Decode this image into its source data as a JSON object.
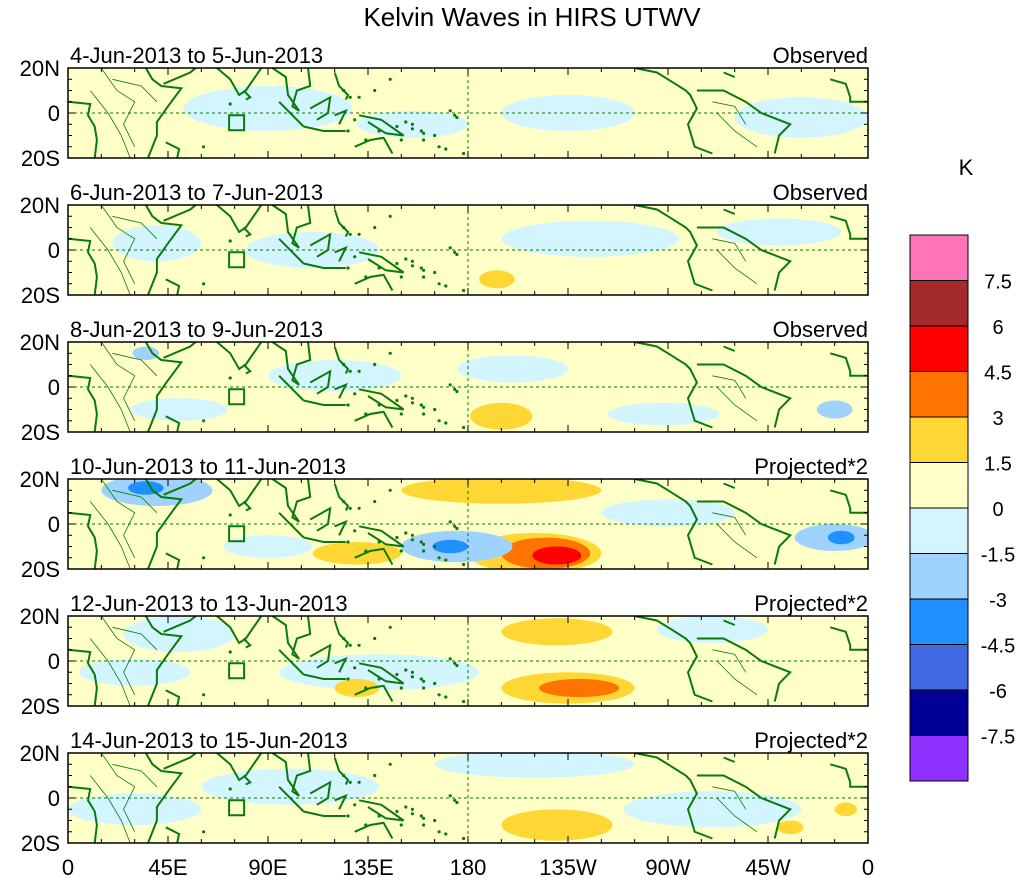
{
  "title": "Kelvin Waves in HIRS UTWV",
  "x_axis": {
    "tick_labels": [
      "0",
      "45E",
      "90E",
      "135E",
      "180",
      "135W",
      "90W",
      "45W",
      "0"
    ],
    "lon_values": [
      0,
      45,
      90,
      135,
      180,
      225,
      270,
      315,
      360
    ]
  },
  "y_axis": {
    "tick_labels": [
      "20N",
      "0",
      "20S"
    ],
    "lat_values": [
      20,
      0,
      -20
    ]
  },
  "colorbar": {
    "unit": "K",
    "tick_labels": [
      "7.5",
      "6",
      "4.5",
      "3",
      "1.5",
      "0",
      "-1.5",
      "-3",
      "-4.5",
      "-6",
      "-7.5"
    ],
    "colors": [
      "#ff73b9",
      "#a52a2a",
      "#ff0000",
      "#ff7300",
      "#ffd735",
      "#ffffc8",
      "#d2f5ff",
      "#a0d2ff",
      "#1e90ff",
      "#4169e1",
      "#000096",
      "#9030ff"
    ]
  },
  "panels": [
    {
      "date_range": "4-Jun-2013 to 5-Jun-2013",
      "type": "Observed"
    },
    {
      "date_range": "6-Jun-2013 to 7-Jun-2013",
      "type": "Observed"
    },
    {
      "date_range": "8-Jun-2013 to 9-Jun-2013",
      "type": "Observed"
    },
    {
      "date_range": "10-Jun-2013 to 11-Jun-2013",
      "type": "Projected*2"
    },
    {
      "date_range": "12-Jun-2013 to 13-Jun-2013",
      "type": "Projected*2"
    },
    {
      "date_range": "14-Jun-2013 to 15-Jun-2013",
      "type": "Projected*2"
    }
  ],
  "map_colors": {
    "coast": "#0a7a0a",
    "background": "#ffffc8",
    "equator": "#0a7a0a"
  },
  "anomaly_features": [
    [
      {
        "lon": 225,
        "lat": 0,
        "rx": 30,
        "ry": 8,
        "level": -1
      },
      {
        "lon": 90,
        "lat": 2,
        "rx": 38,
        "ry": 10,
        "level": -1
      },
      {
        "lon": 330,
        "lat": -2,
        "rx": 30,
        "ry": 9,
        "level": -1
      },
      {
        "lon": 155,
        "lat": -5,
        "rx": 25,
        "ry": 6,
        "level": -1
      }
    ],
    [
      {
        "lon": 40,
        "lat": 3,
        "rx": 20,
        "ry": 8,
        "level": -1
      },
      {
        "lon": 110,
        "lat": 0,
        "rx": 30,
        "ry": 8,
        "level": -1
      },
      {
        "lon": 235,
        "lat": 5,
        "rx": 40,
        "ry": 8,
        "level": -1
      },
      {
        "lon": 193,
        "lat": -13,
        "rx": 8,
        "ry": 4,
        "level": 1
      },
      {
        "lon": 320,
        "lat": 8,
        "rx": 28,
        "ry": 6,
        "level": -1
      }
    ],
    [
      {
        "lon": 120,
        "lat": 5,
        "rx": 30,
        "ry": 7,
        "level": -1
      },
      {
        "lon": 200,
        "lat": 8,
        "rx": 25,
        "ry": 6,
        "level": -1
      },
      {
        "lon": 195,
        "lat": -13,
        "rx": 14,
        "ry": 6,
        "level": 1
      },
      {
        "lon": 50,
        "lat": -10,
        "rx": 22,
        "ry": 5,
        "level": -1
      },
      {
        "lon": 268,
        "lat": -12,
        "rx": 25,
        "ry": 5,
        "level": -1
      },
      {
        "lon": 345,
        "lat": -10,
        "rx": 8,
        "ry": 4,
        "level": -2
      },
      {
        "lon": 35,
        "lat": 15,
        "rx": 6,
        "ry": 3,
        "level": -2
      }
    ],
    [
      {
        "lon": 40,
        "lat": 15,
        "rx": 25,
        "ry": 7,
        "level": -2
      },
      {
        "lon": 35,
        "lat": 16,
        "rx": 8,
        "ry": 3,
        "level": -3
      },
      {
        "lon": 195,
        "lat": 15,
        "rx": 45,
        "ry": 6,
        "level": 1
      },
      {
        "lon": 210,
        "lat": -13,
        "rx": 30,
        "ry": 9,
        "level": 1
      },
      {
        "lon": 215,
        "lat": -13,
        "rx": 20,
        "ry": 7,
        "level": 2
      },
      {
        "lon": 220,
        "lat": -14,
        "rx": 11,
        "ry": 4,
        "level": 3
      },
      {
        "lon": 130,
        "lat": -13,
        "rx": 20,
        "ry": 5,
        "level": 1
      },
      {
        "lon": 175,
        "lat": -10,
        "rx": 25,
        "ry": 7,
        "level": -2
      },
      {
        "lon": 172,
        "lat": -10,
        "rx": 8,
        "ry": 3,
        "level": -3
      },
      {
        "lon": 345,
        "lat": -6,
        "rx": 18,
        "ry": 6,
        "level": -2
      },
      {
        "lon": 348,
        "lat": -6,
        "rx": 6,
        "ry": 3,
        "level": -3
      },
      {
        "lon": 90,
        "lat": -10,
        "rx": 20,
        "ry": 5,
        "level": -1
      },
      {
        "lon": 270,
        "lat": 5,
        "rx": 30,
        "ry": 6,
        "level": -1
      }
    ],
    [
      {
        "lon": 220,
        "lat": 13,
        "rx": 25,
        "ry": 6,
        "level": 1
      },
      {
        "lon": 225,
        "lat": -12,
        "rx": 30,
        "ry": 7,
        "level": 1
      },
      {
        "lon": 230,
        "lat": -12,
        "rx": 18,
        "ry": 4,
        "level": 2
      },
      {
        "lon": 50,
        "lat": 12,
        "rx": 25,
        "ry": 8,
        "level": -1
      },
      {
        "lon": 140,
        "lat": -5,
        "rx": 45,
        "ry": 8,
        "level": -1
      },
      {
        "lon": 290,
        "lat": 14,
        "rx": 25,
        "ry": 6,
        "level": -1
      },
      {
        "lon": 30,
        "lat": -5,
        "rx": 25,
        "ry": 6,
        "level": -1
      },
      {
        "lon": 130,
        "lat": -12,
        "rx": 10,
        "ry": 4,
        "level": 1
      }
    ],
    [
      {
        "lon": 210,
        "lat": 15,
        "rx": 45,
        "ry": 6,
        "level": -1
      },
      {
        "lon": 220,
        "lat": -12,
        "rx": 25,
        "ry": 7,
        "level": 1
      },
      {
        "lon": 325,
        "lat": -13,
        "rx": 6,
        "ry": 3,
        "level": 1
      },
      {
        "lon": 350,
        "lat": -5,
        "rx": 5,
        "ry": 3,
        "level": 1
      },
      {
        "lon": 100,
        "lat": 5,
        "rx": 40,
        "ry": 8,
        "level": -1
      },
      {
        "lon": 290,
        "lat": -5,
        "rx": 40,
        "ry": 8,
        "level": -1
      },
      {
        "lon": 30,
        "lat": -5,
        "rx": 30,
        "ry": 7,
        "level": -1
      }
    ]
  ]
}
